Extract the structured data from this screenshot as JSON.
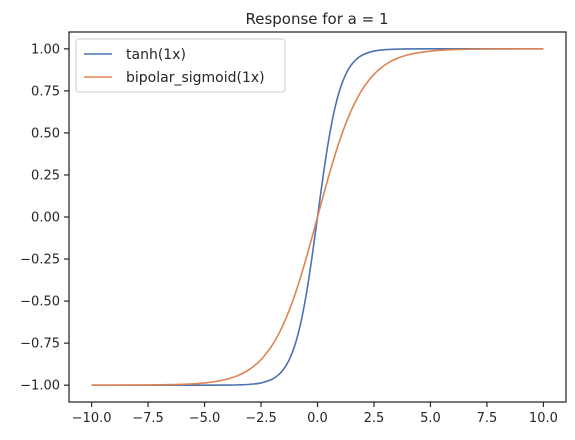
{
  "chart_data": {
    "type": "line",
    "title": "Response for a = 1",
    "xlabel": "",
    "ylabel": "",
    "xlim": [
      -11.0,
      11.0
    ],
    "ylim": [
      -1.1,
      1.1
    ],
    "grid": false,
    "legend_position": "top-left",
    "x_ticks": [
      -10.0,
      -7.5,
      -5.0,
      -2.5,
      0.0,
      2.5,
      5.0,
      7.5,
      10.0
    ],
    "x_tick_labels": [
      "−10.0",
      "−7.5",
      "−5.0",
      "−2.5",
      "0.0",
      "2.5",
      "5.0",
      "7.5",
      "10.0"
    ],
    "y_ticks": [
      -1.0,
      -0.75,
      -0.5,
      -0.25,
      0.0,
      0.25,
      0.5,
      0.75,
      1.0
    ],
    "y_tick_labels": [
      "−1.00",
      "−0.75",
      "−0.50",
      "−0.25",
      "0.00",
      "0.25",
      "0.50",
      "0.75",
      "1.00"
    ],
    "x": [
      -10.0,
      -8.0,
      -6.0,
      -5.0,
      -4.0,
      -3.5,
      -3.0,
      -2.5,
      -2.0,
      -1.75,
      -1.5,
      -1.25,
      -1.0,
      -0.75,
      -0.5,
      -0.25,
      0.0,
      0.25,
      0.5,
      0.75,
      1.0,
      1.25,
      1.5,
      1.75,
      2.0,
      2.5,
      3.0,
      3.5,
      4.0,
      5.0,
      6.0,
      8.0,
      10.0
    ],
    "series": [
      {
        "name": "tanh(1x)",
        "color": "#4c72b0",
        "values": [
          -1.0,
          -1.0,
          -1.0,
          -0.9999,
          -0.9993,
          -0.9982,
          -0.9951,
          -0.9866,
          -0.964,
          -0.9414,
          -0.9051,
          -0.8483,
          -0.7616,
          -0.6351,
          -0.4621,
          -0.2449,
          0.0,
          0.2449,
          0.4621,
          0.6351,
          0.7616,
          0.8483,
          0.9051,
          0.9414,
          0.964,
          0.9866,
          0.9951,
          0.9982,
          0.9993,
          0.9999,
          1.0,
          1.0,
          1.0
        ]
      },
      {
        "name": "bipolar_sigmoid(1x)",
        "color": "#dd8452",
        "values": [
          -0.9999,
          -0.9993,
          -0.9951,
          -0.9866,
          -0.964,
          -0.9414,
          -0.9051,
          -0.8483,
          -0.7616,
          -0.7039,
          -0.6351,
          -0.5546,
          -0.4621,
          -0.3584,
          -0.2449,
          -0.1244,
          0.0,
          0.1244,
          0.2449,
          0.3584,
          0.4621,
          0.5546,
          0.6351,
          0.7039,
          0.7616,
          0.8483,
          0.9051,
          0.9414,
          0.964,
          0.9866,
          0.9951,
          0.9993,
          0.9999
        ]
      }
    ]
  }
}
